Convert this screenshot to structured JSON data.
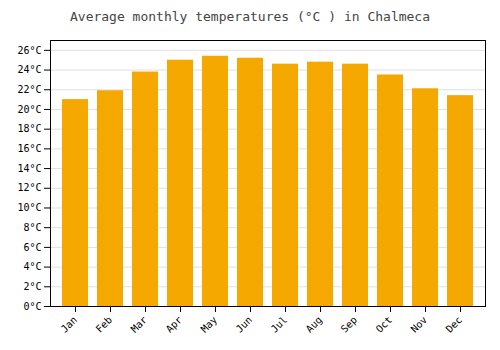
{
  "chart_data": {
    "type": "bar",
    "title": "Average monthly temperatures (°C ) in Chalmeca",
    "categories": [
      "Jan",
      "Feb",
      "Mar",
      "Apr",
      "May",
      "Jun",
      "Jul",
      "Aug",
      "Sep",
      "Oct",
      "Nov",
      "Dec"
    ],
    "values": [
      21.0,
      21.9,
      23.8,
      25.0,
      25.4,
      25.2,
      24.6,
      24.8,
      24.6,
      23.5,
      22.1,
      21.4
    ],
    "color": "#F5A800",
    "ylim": [
      0,
      27
    ],
    "yticks": [
      {
        "value": 0,
        "label": "0°C"
      },
      {
        "value": 2,
        "label": "2°C"
      },
      {
        "value": 4,
        "label": "4°C"
      },
      {
        "value": 6,
        "label": "6°C"
      },
      {
        "value": 8,
        "label": "8°C"
      },
      {
        "value": 10,
        "label": "10°C"
      },
      {
        "value": 12,
        "label": "12°C"
      },
      {
        "value": 14,
        "label": "14°C"
      },
      {
        "value": 16,
        "label": "16°C"
      },
      {
        "value": 18,
        "label": "18°C"
      },
      {
        "value": 20,
        "label": "20°C"
      },
      {
        "value": 22,
        "label": "22°C"
      },
      {
        "value": 24,
        "label": "24°C"
      },
      {
        "value": 26,
        "label": "26°C"
      }
    ],
    "grid": true
  }
}
